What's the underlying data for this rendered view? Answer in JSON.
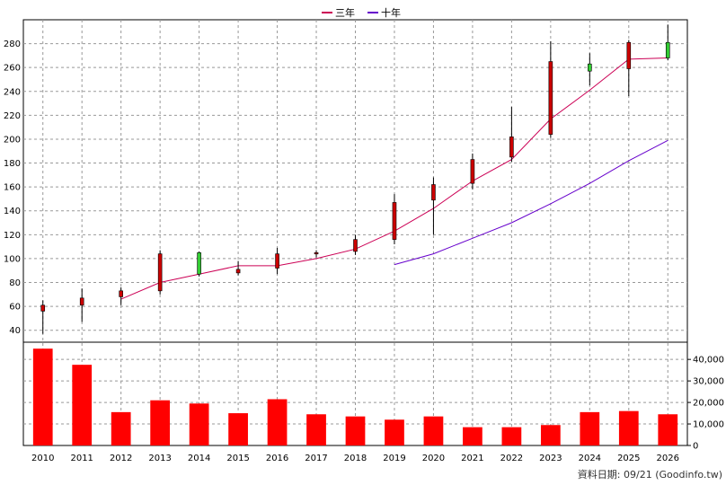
{
  "chart_data": {
    "type": "candlestick+bar",
    "years": [
      "2010",
      "2011",
      "2012",
      "2013",
      "2014",
      "2015",
      "2016",
      "2017",
      "2018",
      "2019",
      "2020",
      "2021",
      "2022",
      "2023",
      "2024",
      "2025",
      "2026"
    ],
    "price": {
      "ylim": [
        30,
        300
      ],
      "ticks": [
        40,
        60,
        80,
        100,
        120,
        140,
        160,
        180,
        200,
        220,
        240,
        260,
        280
      ],
      "candles": [
        {
          "open": 61,
          "close": 56,
          "high": 65,
          "low": 37
        },
        {
          "open": 67,
          "close": 61,
          "high": 75,
          "low": 47
        },
        {
          "open": 73,
          "close": 68,
          "high": 76,
          "low": 61
        },
        {
          "open": 104,
          "close": 73,
          "high": 107,
          "low": 70
        },
        {
          "open": 87,
          "close": 105,
          "high": 106,
          "low": 85
        },
        {
          "open": 91,
          "close": 88,
          "high": 98,
          "low": 86
        },
        {
          "open": 104,
          "close": 92,
          "high": 109,
          "low": 87
        },
        {
          "open": 105,
          "close": 104,
          "high": 107,
          "low": 101
        },
        {
          "open": 116,
          "close": 106,
          "high": 120,
          "low": 103
        },
        {
          "open": 147,
          "close": 116,
          "high": 154,
          "low": 112
        },
        {
          "open": 162,
          "close": 149,
          "high": 168,
          "low": 120
        },
        {
          "open": 183,
          "close": 163,
          "high": 188,
          "low": 158
        },
        {
          "open": 202,
          "close": 185,
          "high": 227,
          "low": 181
        },
        {
          "open": 265,
          "close": 204,
          "high": 282,
          "low": 201
        },
        {
          "open": 257,
          "close": 263,
          "high": 272,
          "low": 245
        },
        {
          "open": 281,
          "close": 259,
          "high": 283,
          "low": 236
        },
        {
          "open": 268,
          "close": 281,
          "high": 296,
          "low": 266
        }
      ],
      "series": [
        {
          "name": "三年",
          "color": "#cc0055",
          "values": [
            null,
            null,
            66,
            80,
            87,
            94,
            94,
            100,
            108,
            123,
            142,
            165,
            183,
            217,
            241,
            267,
            268
          ]
        },
        {
          "name": "十年",
          "color": "#6600cc",
          "values": [
            null,
            null,
            null,
            null,
            null,
            null,
            null,
            null,
            null,
            95,
            104,
            117,
            130,
            146,
            163,
            182,
            199
          ]
        }
      ]
    },
    "volume": {
      "ylim": [
        0,
        48000
      ],
      "ticks": [
        0,
        10000,
        20000,
        30000,
        40000
      ],
      "tick_labels": [
        "0",
        "10,000",
        "20,000",
        "30,000",
        "40,000"
      ],
      "values": [
        45000,
        37500,
        15500,
        21000,
        19500,
        15000,
        21500,
        14500,
        13500,
        12000,
        13500,
        8500,
        8500,
        9500,
        15500,
        16000,
        14500
      ],
      "color": "#ff0000"
    },
    "colors": {
      "up": "#cc0000",
      "down": "#33cc33",
      "grid": "#999999"
    }
  },
  "legend": [
    {
      "label": "三年",
      "color": "#cc0055"
    },
    {
      "label": "十年",
      "color": "#6600cc"
    }
  ],
  "source_note": "資料日期: 09/21  (Goodinfo.tw)"
}
